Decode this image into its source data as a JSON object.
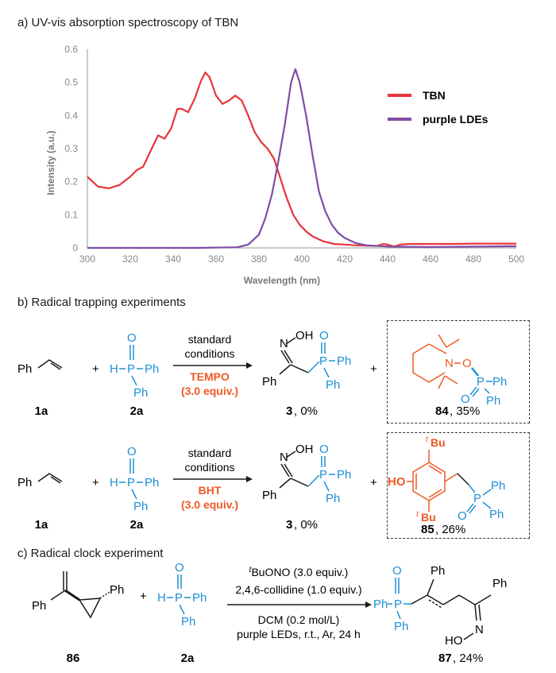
{
  "section_a": {
    "title": "a) UV-vis absorption spectroscopy of TBN"
  },
  "chart_data": {
    "type": "line",
    "title": "UV-vis absorption spectroscopy of TBN",
    "xlabel": "Wavelength (nm)",
    "ylabel": "Intensity (a.u.)",
    "xlim": [
      300,
      500
    ],
    "ylim": [
      0,
      0.6
    ],
    "xticks": [
      300,
      320,
      340,
      360,
      380,
      400,
      420,
      440,
      460,
      480,
      500
    ],
    "yticks": [
      0,
      0.1,
      0.2,
      0.3,
      0.4,
      0.5,
      0.6
    ],
    "xtick_labels": [
      "300",
      "320",
      "340",
      "360",
      "380",
      "400",
      "420",
      "440",
      "460",
      "480",
      "500"
    ],
    "ytick_labels": [
      "0",
      "0.1",
      "0.2",
      "0.3",
      "0.4",
      "0.5",
      "0.6"
    ],
    "legend_position": "top-right",
    "series": [
      {
        "name": "TBN",
        "color": "#e8353a",
        "x": [
          300,
          305,
          310,
          315,
          320,
          323,
          326,
          330,
          333,
          336,
          339,
          342,
          344,
          347,
          350,
          353,
          355,
          357,
          360,
          363,
          366,
          369,
          372,
          375,
          378,
          381,
          384,
          387,
          390,
          393,
          396,
          399,
          402,
          405,
          410,
          415,
          420,
          425,
          430,
          435,
          438,
          440,
          443,
          446,
          450,
          460,
          470,
          480,
          490,
          500
        ],
        "y": [
          0.215,
          0.185,
          0.18,
          0.19,
          0.215,
          0.235,
          0.245,
          0.3,
          0.34,
          0.33,
          0.36,
          0.42,
          0.42,
          0.41,
          0.45,
          0.505,
          0.53,
          0.515,
          0.46,
          0.435,
          0.445,
          0.46,
          0.445,
          0.4,
          0.35,
          0.32,
          0.3,
          0.27,
          0.21,
          0.15,
          0.1,
          0.07,
          0.05,
          0.035,
          0.02,
          0.012,
          0.01,
          0.008,
          0.007,
          0.006,
          0.012,
          0.01,
          0.004,
          0.01,
          0.012,
          0.012,
          0.012,
          0.013,
          0.013,
          0.013
        ]
      },
      {
        "name": "purple LDEs",
        "color": "#7e4da5",
        "x": [
          300,
          350,
          370,
          375,
          380,
          383,
          386,
          389,
          392,
          395,
          397,
          399,
          402,
          405,
          408,
          411,
          414,
          417,
          420,
          425,
          430,
          440,
          460,
          480,
          500
        ],
        "y": [
          0,
          0,
          0.002,
          0.01,
          0.04,
          0.09,
          0.16,
          0.26,
          0.37,
          0.5,
          0.54,
          0.5,
          0.4,
          0.28,
          0.17,
          0.11,
          0.07,
          0.045,
          0.03,
          0.015,
          0.008,
          0.004,
          0.003,
          0.004,
          0.005
        ]
      }
    ]
  },
  "section_b": {
    "title": "b) Radical trapping experiments",
    "row1": {
      "label_1a": "1a",
      "label_2a": "2a",
      "cond_top1": "standard",
      "cond_top2": "conditions",
      "additive": "TEMPO",
      "additive_amt": "(3.0 equiv.)",
      "product_label": "3",
      "product_yield": ", 0%",
      "trap_label": "84",
      "trap_yield": ", 35%"
    },
    "row2": {
      "label_1a": "1a",
      "label_2a": "2a",
      "cond_top1": "standard",
      "cond_top2": "conditions",
      "additive": "BHT",
      "additive_amt": "(3.0 equiv.)",
      "product_label": "3",
      "product_yield": ", 0%",
      "trap_label": "85",
      "trap_yield": ", 26%"
    }
  },
  "section_c": {
    "title": "c) Radical clock experiment",
    "cond1_sup": "t",
    "cond1": "BuONO (3.0 equiv.)",
    "cond2": "2,4,6-collidine (1.0 equiv.)",
    "cond3": "DCM (0.2 mol/L)",
    "cond4": "purple LEDs, r.t., Ar, 24 h",
    "label_86": "86",
    "label_2a": "2a",
    "product_label": "87",
    "product_yield": ", 24%"
  },
  "atoms": {
    "O": "O",
    "H": "H",
    "P": "P",
    "Ph": "Ph",
    "N": "N",
    "OH": "OH",
    "HO": "HO",
    "Bu": "Bu",
    "t": "t",
    "plus": "+"
  },
  "colors": {
    "blue": "#1e8fd6",
    "orange": "#ee5a24"
  }
}
